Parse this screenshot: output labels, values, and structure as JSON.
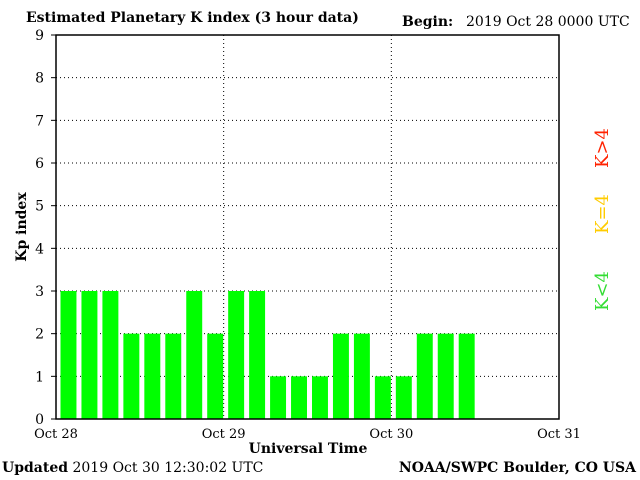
{
  "header": {
    "title": "Estimated Planetary K index (3 hour data)",
    "begin_label": "Begin:",
    "begin_value": "2019 Oct 28 0000 UTC"
  },
  "footer": {
    "updated_label": "Updated",
    "updated_value": "2019 Oct 30 12:30:02 UTC",
    "credit": "NOAA/SWPC Boulder, CO USA"
  },
  "colors": {
    "bar": "#00ff00",
    "k_lt_4": "#33dd33",
    "k_eq_4": "#ffcc00",
    "k_gt_4": "#ff2200"
  },
  "chart_data": {
    "type": "bar",
    "title": "Estimated Planetary K index (3 hour data)",
    "xlabel": "Universal Time",
    "ylabel": "Kp index",
    "ylim": [
      0,
      9
    ],
    "yticks": [
      "0",
      "1",
      "2",
      "3",
      "4",
      "5",
      "6",
      "7",
      "8",
      "9"
    ],
    "xticks": [
      "Oct 28",
      "Oct 29",
      "Oct 30",
      "Oct 31"
    ],
    "grid": true,
    "bar_interval_hours": 3,
    "values": [
      3,
      3,
      3,
      2,
      2,
      2,
      3,
      2,
      3,
      3,
      1,
      1,
      1,
      2,
      2,
      1,
      1,
      2,
      2,
      2
    ],
    "legend": [
      "K<4",
      "K=4",
      "K>4"
    ]
  }
}
